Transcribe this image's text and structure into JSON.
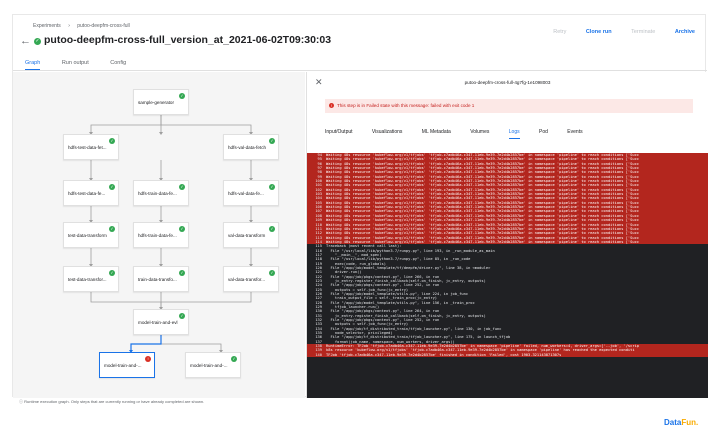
{
  "breadcrumb": [
    "Experiments",
    "putoo-deepfm-cross-full"
  ],
  "run": {
    "title": "putoo-deepfm-cross-full_version_at_2021-06-02T09:30:03",
    "actions": {
      "retry": "Retry",
      "clone": "Clone run",
      "terminate": "Terminate",
      "archive": "Archive"
    }
  },
  "tabs": [
    "Graph",
    "Run output",
    "Config"
  ],
  "graph": {
    "nodes": {
      "sample_generator": "sample-generator",
      "hdfs_test_fetch": "hdfs-test-data-fet...",
      "hdfs_val_fetch": "hdfs-val-data-fetch",
      "hdfs_test_fe": "hdfs-test-data-fe...",
      "hdfs_train_fe": "hdfs-train-data-fe...",
      "hdfs_val_fe": "hdfs-val-data-fe...",
      "test_transform": "test-data-transform",
      "hdfs_train_fe2": "hdfs-train-data-fe...",
      "val_transform": "val-data-transform",
      "test_transform2": "test-data-transfor...",
      "train_transform": "train-data-transfo...",
      "val_transform2": "val-data-transfor...",
      "model_train_eval": "model-train-and-evl",
      "model_train_1": "model-train-and-...",
      "model_train_2": "model-train-and-..."
    },
    "footnote": "Runtime execution graph. Only steps that are currently running or have already completed are shown."
  },
  "panel": {
    "title": "putoo-deepfm-cross-full-4g7fg-1e1098003",
    "error": "This step is in Failed state with this message: failed with exit code 1",
    "tabs": [
      "Input/Output",
      "Visualizations",
      "ML Metadata",
      "Volumes",
      "Logs",
      "Pod",
      "Events"
    ],
    "active_tab": "Logs"
  },
  "logs": [
    {
      "n": "94",
      "t": "Waiting 48s resource 'kubeflow.org/v1/tfjobs' 'tfjob-c7adb46a-c347-11eb-9e39-7e2d4b2857be' in namespace 'pipeline' to reach conditions ['Succ",
      "err": true
    },
    {
      "n": "95",
      "t": "Waiting 48s resource 'kubeflow.org/v1/tfjobs' 'tfjob-c7adb46a-c347-11eb-9e39-7e2d4b2857be' in namespace 'pipeline' to reach conditions ['Succ",
      "err": true
    },
    {
      "n": "96",
      "t": "Waiting 48s resource 'kubeflow.org/v1/tfjobs' 'tfjob-c7adb46a-c347-11eb-9e39-7e2d4b2857be' in namespace 'pipeline' to reach conditions ['Succ",
      "err": true
    },
    {
      "n": "97",
      "t": "Waiting 48s resource 'kubeflow.org/v1/tfjobs' 'tfjob-c7adb46a-c347-11eb-9e39-7e2d4b2857be' in namespace 'pipeline' to reach conditions ['Succ",
      "err": true
    },
    {
      "n": "98",
      "t": "Waiting 48s resource 'kubeflow.org/v1/tfjobs' 'tfjob-c7adb46a-c347-11eb-9e39-7e2d4b2857be' in namespace 'pipeline' to reach conditions ['Succ",
      "err": true
    },
    {
      "n": "99",
      "t": "Waiting 48s resource 'kubeflow.org/v1/tfjobs' 'tfjob-c7adb46a-c347-11eb-9e39-7e2d4b2857be' in namespace 'pipeline' to reach conditions ['Succ",
      "err": true
    },
    {
      "n": "100",
      "t": "Waiting 48s resource 'kubeflow.org/v1/tfjobs' 'tfjob-c7adb46a-c347-11eb-9e39-7e2d4b2857be' in namespace 'pipeline' to reach conditions ['Succ",
      "err": true
    },
    {
      "n": "101",
      "t": "Waiting 48s resource 'kubeflow.org/v1/tfjobs' 'tfjob-c7adb46a-c347-11eb-9e39-7e2d4b2857be' in namespace 'pipeline' to reach conditions ['Succ",
      "err": true
    },
    {
      "n": "102",
      "t": "Waiting 48s resource 'kubeflow.org/v1/tfjobs' 'tfjob-c7adb46a-c347-11eb-9e39-7e2d4b2857be' in namespace 'pipeline' to reach conditions ['Succ",
      "err": true
    },
    {
      "n": "103",
      "t": "Waiting 48s resource 'kubeflow.org/v1/tfjobs' 'tfjob-c7adb46a-c347-11eb-9e39-7e2d4b2857be' in namespace 'pipeline' to reach conditions ['Succ",
      "err": true
    },
    {
      "n": "104",
      "t": "Waiting 48s resource 'kubeflow.org/v1/tfjobs' 'tfjob-c7adb46a-c347-11eb-9e39-7e2d4b2857be' in namespace 'pipeline' to reach conditions ['Succ",
      "err": true
    },
    {
      "n": "105",
      "t": "Waiting 48s resource 'kubeflow.org/v1/tfjobs' 'tfjob-c7adb46a-c347-11eb-9e39-7e2d4b2857be' in namespace 'pipeline' to reach conditions ['Succ",
      "err": true
    },
    {
      "n": "106",
      "t": "Waiting 48s resource 'kubeflow.org/v1/tfjobs' 'tfjob-c7adb46a-c347-11eb-9e39-7e2d4b2857be' in namespace 'pipeline' to reach conditions ['Succ",
      "err": true
    },
    {
      "n": "107",
      "t": "Waiting 48s resource 'kubeflow.org/v1/tfjobs' 'tfjob-c7adb46a-c347-11eb-9e39-7e2d4b2857be' in namespace 'pipeline' to reach conditions ['Succ",
      "err": true
    },
    {
      "n": "108",
      "t": "Waiting 48s resource 'kubeflow.org/v1/tfjobs' 'tfjob-c7adb46a-c347-11eb-9e39-7e2d4b2857be' in namespace 'pipeline' to reach conditions ['Succ",
      "err": true
    },
    {
      "n": "109",
      "t": "Waiting 48s resource 'kubeflow.org/v1/tfjobs' 'tfjob-c7adb46a-c347-11eb-9e39-7e2d4b2857be' in namespace 'pipeline' to reach conditions ['Succ",
      "err": true
    },
    {
      "n": "110",
      "t": "Waiting 48s resource 'kubeflow.org/v1/tfjobs' 'tfjob-c7adb46a-c347-11eb-9e39-7e2d4b2857be' in namespace 'pipeline' to reach conditions ['Succ",
      "err": true
    },
    {
      "n": "111",
      "t": "Waiting 48s resource 'kubeflow.org/v1/tfjobs' 'tfjob-c7adb46a-c347-11eb-9e39-7e2d4b2857be' in namespace 'pipeline' to reach conditions ['Succ",
      "err": true
    },
    {
      "n": "112",
      "t": "Waiting 48s resource 'kubeflow.org/v1/tfjobs' 'tfjob-c7adb46a-c347-11eb-9e39-7e2d4b2857be' in namespace 'pipeline' to reach conditions ['Succ",
      "err": true
    },
    {
      "n": "113",
      "t": "Waiting 48s resource 'kubeflow.org/v1/tfjobs' 'tfjob-c7adb46a-c347-11eb-9e39-7e2d4b2857be' in namespace 'pipeline' to reach conditions ['Succ",
      "err": true
    },
    {
      "n": "114",
      "t": "Waiting 48s resource 'kubeflow.org/v1/tfjobs' 'tfjob-c7adb46a-c347-11eb-9e39-7e2d4b2857be' in namespace 'pipeline' to reach conditions ['Succ",
      "err": true
    },
    {
      "n": "115",
      "t": "Traceback (most recent call last):",
      "err": false
    },
    {
      "n": "116",
      "t": "  File \"/usr/local/lib/python3.7/runpy.py\", line 193, in _run_module_as_main",
      "err": false
    },
    {
      "n": "117",
      "t": "    \"__main__\", mod_spec)",
      "err": false
    },
    {
      "n": "118",
      "t": "  File \"/usr/local/lib/python3.7/runpy.py\", line 85, in _run_code",
      "err": false
    },
    {
      "n": "119",
      "t": "    exec(code, run_globals)",
      "err": false
    },
    {
      "n": "120",
      "t": "  File \"/app/job/model_template/tf/deepfm/driver.py\", line 38, in <module>",
      "err": false
    },
    {
      "n": "121",
      "t": "    driver.run()",
      "err": false
    },
    {
      "n": "122",
      "t": "  File \"/app/job/pkgs/context.py\", line 266, in run",
      "err": false
    },
    {
      "n": "123",
      "t": "    jc_entry.register_finish_callback(self.on_finish, jc_entry, outputs)",
      "err": false
    },
    {
      "n": "124",
      "t": "  File \"/app/job/pkgs/context.py\", line 252, in run",
      "err": false
    },
    {
      "n": "125",
      "t": "    outputs = self.job_func(jc_entry)",
      "err": false
    },
    {
      "n": "126",
      "t": "  File \"/app/job/model_template/utils.py\", line 224, in job_func",
      "err": false
    },
    {
      "n": "127",
      "t": "    train_output_file = self._train_proc(jc_entry)",
      "err": false
    },
    {
      "n": "128",
      "t": "  File \"/app/job/model_template/utils.py\", line 156, in _train_proc",
      "err": false
    },
    {
      "n": "129",
      "t": "    tfjob_launcher.run()",
      "err": false
    },
    {
      "n": "130",
      "t": "  File \"/app/job/pkgs/context.py\", line 264, in run",
      "err": false
    },
    {
      "n": "131",
      "t": "    jc_entry.register_finish_callback(self.on_finish, jc_entry, outputs)",
      "err": false
    },
    {
      "n": "132",
      "t": "  File \"/app/job/pkgs/context.py\", line 252, in run",
      "err": false
    },
    {
      "n": "133",
      "t": "    outputs = self.job_func(jc_entry)",
      "err": false
    },
    {
      "n": "134",
      "t": "  File \"/app/job/tf_distributed_train/tfjob_launcher.py\", line 130, in job_func",
      "err": false
    },
    {
      "n": "135",
      "t": "    node_selector, privileged)",
      "err": false
    },
    {
      "n": "136",
      "t": "  File \"/app/job/tf_distributed_train/tfjob_launcher.py\", line 175, in launch_tfjob",
      "err": false
    },
    {
      "n": "137",
      "t": "    format(job_name, namespace, num_workers, driver_args))",
      "err": false
    },
    {
      "n": "138",
      "t": "RuntimeError: TFJob 'tfjob-c7adb46a-c347-11eb-9e39-7e2d4b2857be' in namespace 'pipeline' failed, num_workers=4, driver_args=['--job', '/scrip",
      "err": true
    },
    {
      "n": "139",
      "t": "k8s resource 'kubeflow.org/v1/tfjobs' 'tfjob-c7adb46a-c347-11eb-9e39-7e2d4b2857be' in namespace 'pipeline' has reached the expected conditi",
      "err": true
    },
    {
      "n": "140",
      "t": "TFJob 'tfjob-c7adb46a-c347-11eb-9e39-7e2d4b2857be' finished in condition 'Failed', cost 1903.321143871307s",
      "err": true
    }
  ],
  "watermark": {
    "a": "Data",
    "b": "Fun."
  }
}
